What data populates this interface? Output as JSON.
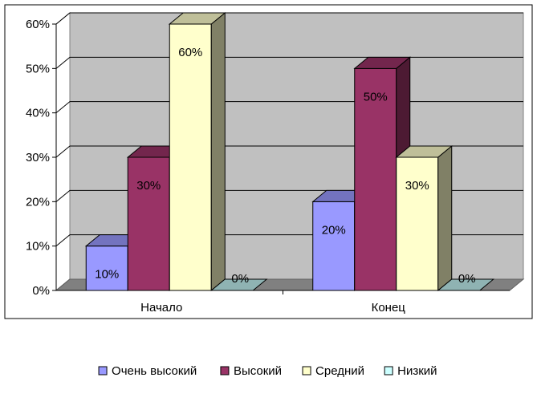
{
  "chart_data": {
    "type": "bar",
    "three_d": true,
    "categories": [
      "Начало",
      "Конец"
    ],
    "series": [
      {
        "name": "Очень высокий",
        "values": [
          10,
          20
        ],
        "labels": [
          "10%",
          "20%"
        ],
        "color": "#9999FF"
      },
      {
        "name": "Высокий",
        "values": [
          30,
          50
        ],
        "labels": [
          "30%",
          "50%"
        ],
        "color": "#993366"
      },
      {
        "name": "Средний",
        "values": [
          60,
          30
        ],
        "labels": [
          "60%",
          "30%"
        ],
        "color": "#FFFFCC"
      },
      {
        "name": "Низкий",
        "values": [
          0,
          0
        ],
        "labels": [
          "0%",
          "0%"
        ],
        "color": "#CCFFFF"
      }
    ],
    "ylim": [
      0,
      60
    ],
    "yticks": [
      0,
      10,
      20,
      30,
      40,
      50,
      60
    ],
    "ytick_labels": [
      "0%",
      "10%",
      "20%",
      "30%",
      "40%",
      "50%",
      "60%"
    ],
    "grid": true,
    "legend_position": "bottom",
    "title": "",
    "xlabel": "",
    "ylabel": ""
  },
  "colors": {
    "plot_background": "#C0C0C0",
    "back_wall": "#C0C0C0",
    "floor": "#808080",
    "gridline": "#000000",
    "axis": "#000000"
  }
}
